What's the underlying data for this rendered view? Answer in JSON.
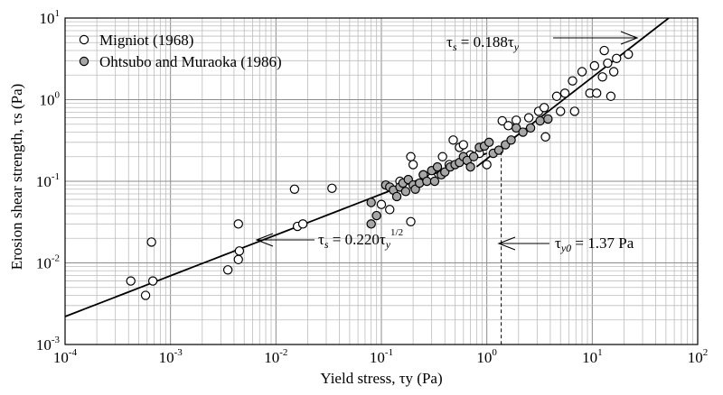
{
  "chart_data": {
    "type": "scatter",
    "x_scale": "log",
    "y_scale": "log",
    "xlim": [
      0.0001,
      100
    ],
    "ylim": [
      0.001,
      10
    ],
    "grid": true,
    "legend_position": "top-left",
    "xlabel": "Yield stress, τy (Pa)",
    "ylabel": "Erosion shear strength, τs (Pa)",
    "xticks": [
      {
        "base": "10",
        "exp": "-4"
      },
      {
        "base": "10",
        "exp": "-3"
      },
      {
        "base": "10",
        "exp": "-2"
      },
      {
        "base": "10",
        "exp": "-1"
      },
      {
        "base": "10",
        "exp": "0"
      },
      {
        "base": "10",
        "exp": "1"
      },
      {
        "base": "10",
        "exp": "2"
      }
    ],
    "yticks": [
      {
        "base": "10",
        "exp": "-3"
      },
      {
        "base": "10",
        "exp": "-2"
      },
      {
        "base": "10",
        "exp": "-1"
      },
      {
        "base": "10",
        "exp": "0"
      },
      {
        "base": "10",
        "exp": "1"
      }
    ],
    "series": [
      {
        "name": "Migniot (1968)",
        "marker": "open-circle",
        "color": "#ffffff",
        "points": [
          [
            0.00042,
            0.006
          ],
          [
            0.00058,
            0.004
          ],
          [
            0.00066,
            0.018
          ],
          [
            0.00068,
            0.006
          ],
          [
            0.0035,
            0.0082
          ],
          [
            0.0044,
            0.011
          ],
          [
            0.0045,
            0.014
          ],
          [
            0.0044,
            0.03
          ],
          [
            0.015,
            0.08
          ],
          [
            0.016,
            0.028
          ],
          [
            0.018,
            0.03
          ],
          [
            0.034,
            0.082
          ],
          [
            0.1,
            0.052
          ],
          [
            0.12,
            0.045
          ],
          [
            0.15,
            0.1
          ],
          [
            0.19,
            0.032
          ],
          [
            0.19,
            0.2
          ],
          [
            0.2,
            0.16
          ],
          [
            0.25,
            0.12
          ],
          [
            0.3,
            0.11
          ],
          [
            0.38,
            0.2
          ],
          [
            0.44,
            0.16
          ],
          [
            0.48,
            0.32
          ],
          [
            0.55,
            0.26
          ],
          [
            0.6,
            0.28
          ],
          [
            0.7,
            0.21
          ],
          [
            0.85,
            0.22
          ],
          [
            1.0,
            0.16
          ],
          [
            1.4,
            0.55
          ],
          [
            1.6,
            0.48
          ],
          [
            1.9,
            0.56
          ],
          [
            2.5,
            0.6
          ],
          [
            3.1,
            0.72
          ],
          [
            3.5,
            0.8
          ],
          [
            3.6,
            0.35
          ],
          [
            4.6,
            1.1
          ],
          [
            5.0,
            0.72
          ],
          [
            5.5,
            1.2
          ],
          [
            6.5,
            1.7
          ],
          [
            6.8,
            0.72
          ],
          [
            8.0,
            2.2
          ],
          [
            9.5,
            1.2
          ],
          [
            10.5,
            2.6
          ],
          [
            11,
            1.2
          ],
          [
            12.5,
            1.9
          ],
          [
            13,
            4.0
          ],
          [
            14,
            2.8
          ],
          [
            15,
            1.1
          ],
          [
            16,
            2.2
          ],
          [
            17,
            3.2
          ],
          [
            22,
            3.6
          ]
        ]
      },
      {
        "name": "Ohtsubo and Muraoka (1986)",
        "marker": "filled-circle",
        "color": "#a6a6a6",
        "points": [
          [
            0.08,
            0.055
          ],
          [
            0.08,
            0.03
          ],
          [
            0.09,
            0.038
          ],
          [
            0.11,
            0.09
          ],
          [
            0.12,
            0.085
          ],
          [
            0.13,
            0.078
          ],
          [
            0.14,
            0.065
          ],
          [
            0.15,
            0.085
          ],
          [
            0.16,
            0.095
          ],
          [
            0.17,
            0.075
          ],
          [
            0.18,
            0.105
          ],
          [
            0.2,
            0.09
          ],
          [
            0.21,
            0.08
          ],
          [
            0.23,
            0.095
          ],
          [
            0.25,
            0.12
          ],
          [
            0.27,
            0.1
          ],
          [
            0.3,
            0.135
          ],
          [
            0.32,
            0.1
          ],
          [
            0.34,
            0.15
          ],
          [
            0.37,
            0.12
          ],
          [
            0.4,
            0.13
          ],
          [
            0.45,
            0.15
          ],
          [
            0.5,
            0.16
          ],
          [
            0.55,
            0.17
          ],
          [
            0.6,
            0.2
          ],
          [
            0.65,
            0.18
          ],
          [
            0.7,
            0.15
          ],
          [
            0.75,
            0.2
          ],
          [
            0.85,
            0.26
          ],
          [
            0.95,
            0.27
          ],
          [
            1.05,
            0.3
          ],
          [
            1.15,
            0.22
          ],
          [
            1.3,
            0.24
          ],
          [
            1.5,
            0.28
          ],
          [
            1.7,
            0.32
          ],
          [
            1.9,
            0.45
          ],
          [
            2.2,
            0.4
          ],
          [
            2.6,
            0.45
          ],
          [
            3.2,
            0.55
          ],
          [
            3.8,
            0.58
          ]
        ]
      }
    ],
    "fits": [
      {
        "label_tau": "τ",
        "label_sub": "s",
        "label_eq": " = 0.188",
        "label_tau2": "τ",
        "label_sub2": "y",
        "label_exp": "",
        "coef": 0.188,
        "exponent": 1.0,
        "x_range": [
          0.8,
          100
        ]
      },
      {
        "label_tau": "τ",
        "label_sub": "s",
        "label_eq": " = 0.220",
        "label_tau2": "τ",
        "label_sub2": "y",
        "label_exp": "1/2",
        "coef": 0.22,
        "exponent": 0.5,
        "x_range": [
          0.0001,
          1.0
        ]
      }
    ],
    "threshold": {
      "x": 1.37,
      "label_tau": "τ",
      "label_sub": "y0",
      "label_rest": " = 1.37 Pa"
    }
  }
}
